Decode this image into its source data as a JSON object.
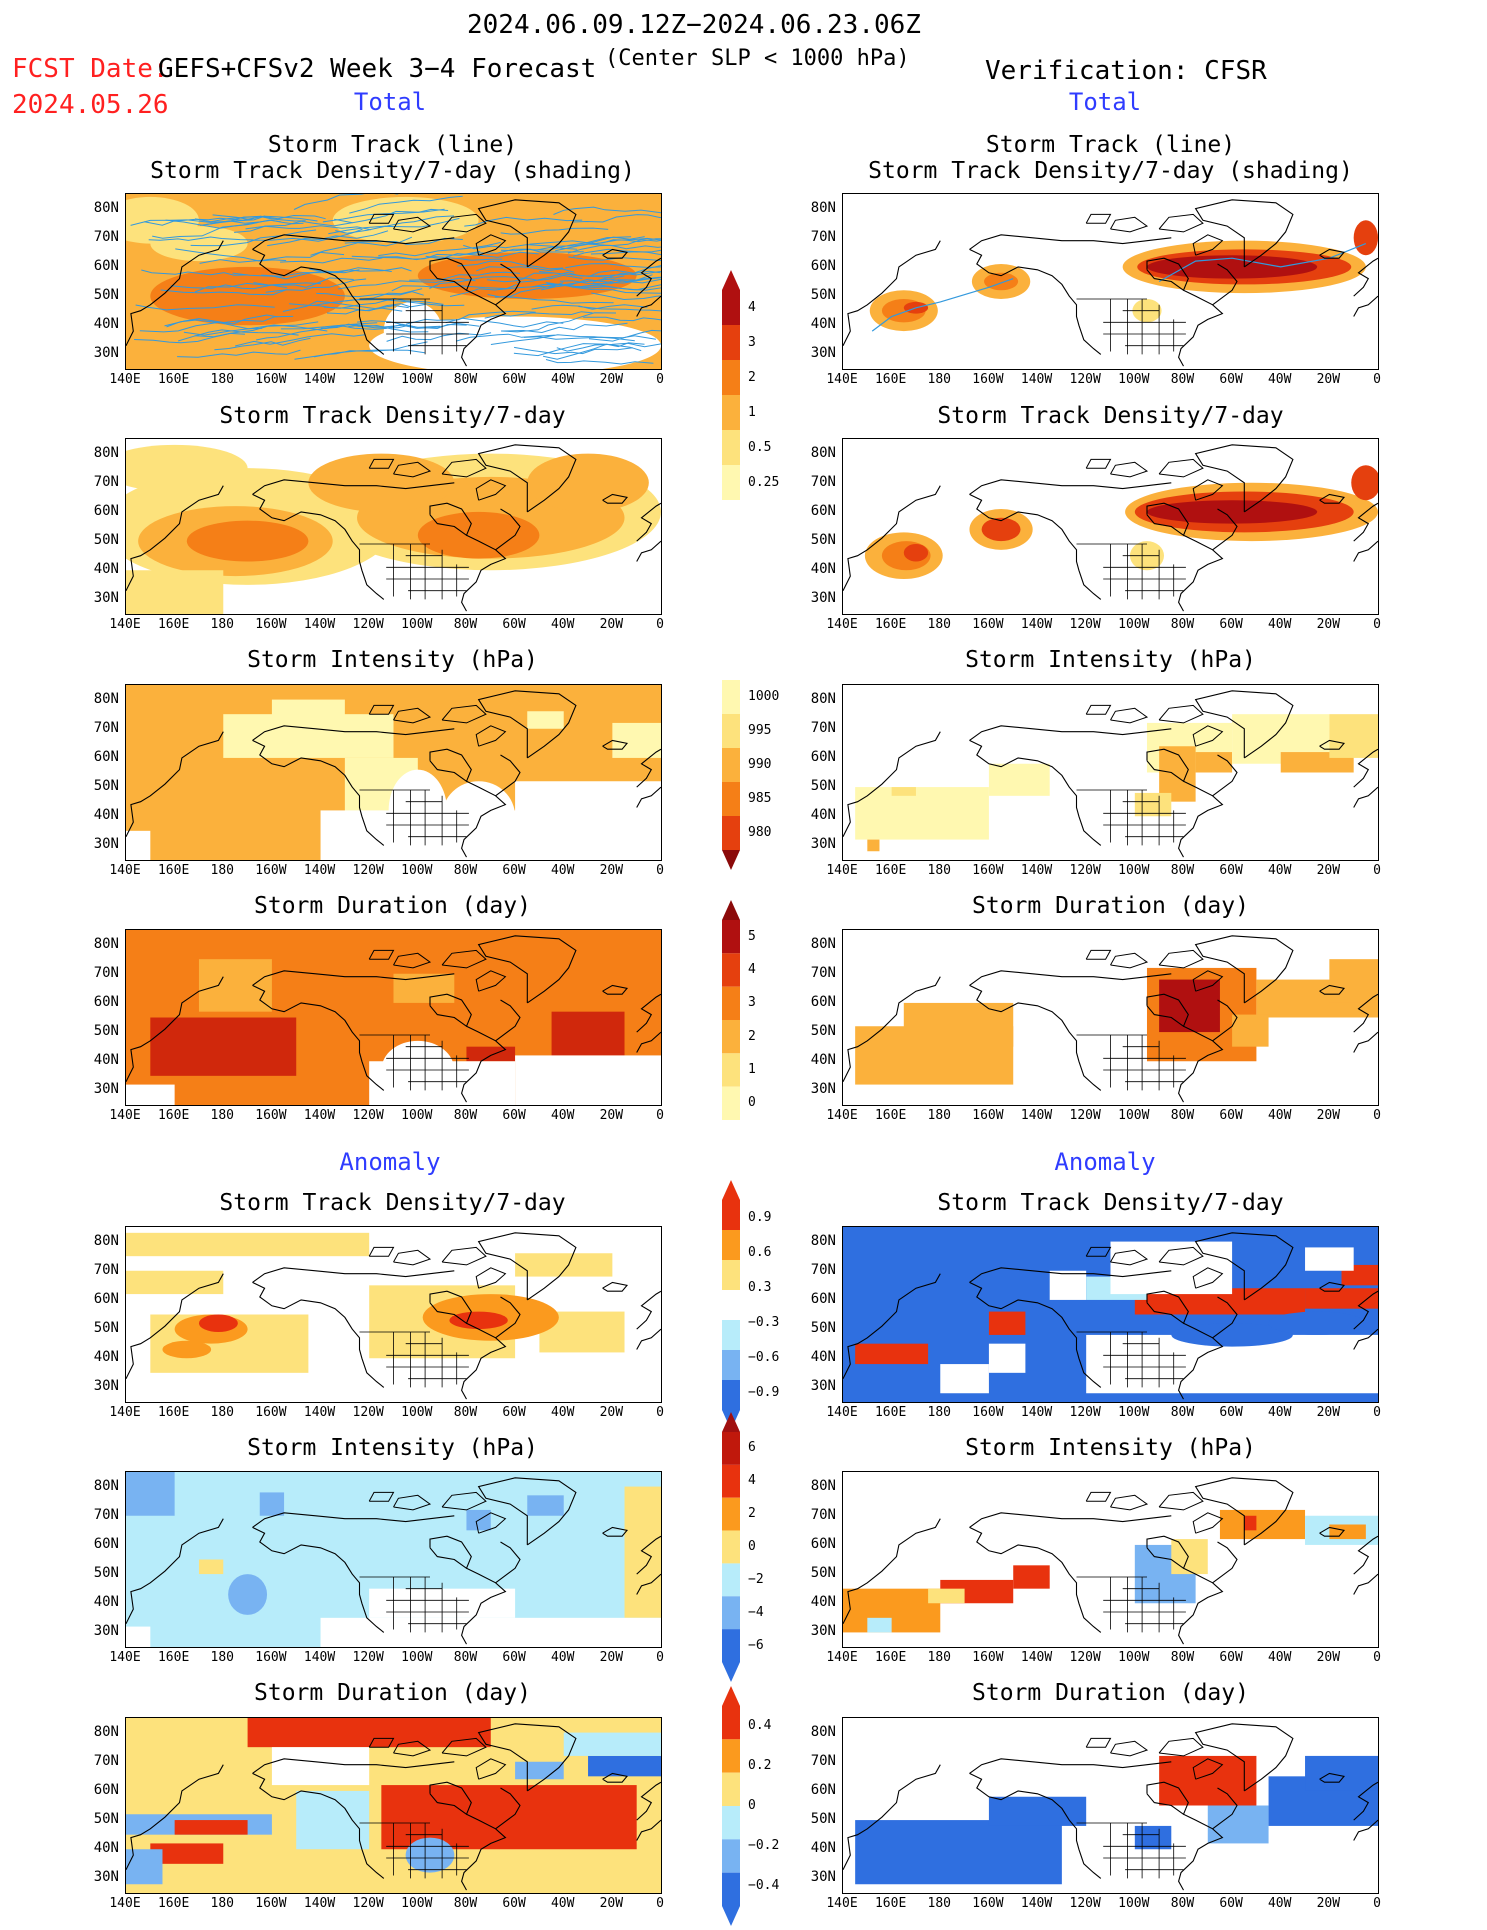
{
  "header": {
    "date_range": "2024.06.09.12Z−2024.06.23.06Z",
    "fcst_label": "FCST Date:",
    "fcst_date": "2024.05.26",
    "model_title": "GEFS+CFSv2 Week 3−4 Forecast",
    "center_slp": "(Center SLP < 1000 hPa)",
    "verification": "Verification: CFSR"
  },
  "sections": {
    "total_left": "Total",
    "total_right": "Total",
    "anomaly_left": "Anomaly",
    "anomaly_right": "Anomaly"
  },
  "panel_titles": {
    "storm_track_line": "Storm Track (line)",
    "storm_track_density_shading": "Storm Track Density/7-day (shading)",
    "storm_track_density": "Storm Track Density/7-day",
    "storm_intensity": "Storm Intensity (hPa)",
    "storm_duration": "Storm Duration (day)"
  },
  "axes": {
    "lat_labels": [
      "80N",
      "70N",
      "60N",
      "50N",
      "40N",
      "30N"
    ],
    "lon_labels": [
      "140E",
      "160E",
      "180",
      "160W",
      "140W",
      "120W",
      "100W",
      "80W",
      "60W",
      "40W",
      "20W",
      "0"
    ]
  },
  "colorbars": {
    "density_total": [
      "4",
      "3",
      "2",
      "1",
      "0.5",
      "0.25"
    ],
    "intensity_total": [
      "1000",
      "995",
      "990",
      "985",
      "980"
    ],
    "duration_total": [
      "5",
      "4",
      "3",
      "2",
      "1",
      "0"
    ],
    "density_anom": [
      "0.9",
      "0.6",
      "0.3",
      "−0.3",
      "−0.6",
      "−0.9"
    ],
    "intensity_anom": [
      "6",
      "4",
      "2",
      "0",
      "−2",
      "−4",
      "−6"
    ],
    "duration_anom": [
      "0.4",
      "0.2",
      "0",
      "−0.2",
      "−0.4"
    ]
  },
  "colors": {
    "total_scale": [
      "#fff8b0",
      "#fde27c",
      "#fbb13c",
      "#f57f17",
      "#e5400e",
      "#b01010"
    ],
    "anom_pos": [
      "#fde27c",
      "#fb9a1e",
      "#e8320e"
    ],
    "anom_neg": [
      "#b7ecfa",
      "#78b3f2",
      "#2f6fe0"
    ],
    "track_line": "#3399dd",
    "title_red": "#ff2020",
    "section_blue": "#2f3cff"
  }
}
